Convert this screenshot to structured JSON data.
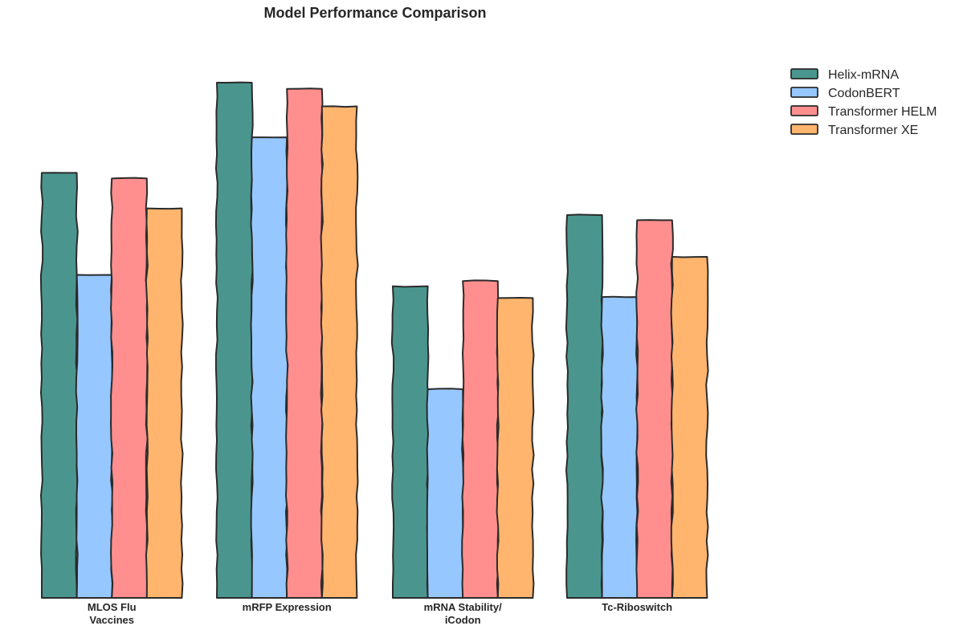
{
  "chart_data": {
    "type": "bar",
    "title": "Model Performance Comparison",
    "xlabel": "",
    "ylabel": "",
    "ylim": [
      0,
      1.0
    ],
    "categories": [
      [
        "MLOS Flu",
        "Vaccines"
      ],
      [
        "mRFP Expression"
      ],
      [
        "mRNA Stability/",
        "iCodon"
      ],
      [
        "Tc-Riboswitch"
      ]
    ],
    "series": [
      {
        "name": "Helix-mRNA",
        "color": "#4a968f",
        "values": [
          0.825,
          1.0,
          0.605,
          0.743
        ]
      },
      {
        "name": "CodonBERT",
        "color": "#96c8ff",
        "values": [
          0.627,
          0.894,
          0.405,
          0.584
        ]
      },
      {
        "name": "Transformer HELM",
        "color": "#ff8f8f",
        "values": [
          0.814,
          0.988,
          0.615,
          0.733
        ]
      },
      {
        "name": "Transformer XE",
        "color": "#ffb56d",
        "values": [
          0.756,
          0.954,
          0.582,
          0.662
        ]
      }
    ],
    "legend_position": "top-right, outside plot",
    "grid": false,
    "style": "hand-drawn (xkcd-like) outlines"
  }
}
